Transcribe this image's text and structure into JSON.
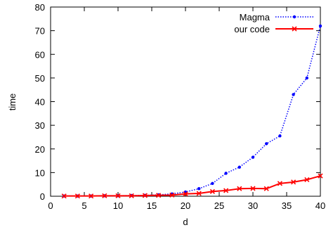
{
  "chart_data": {
    "type": "line",
    "title": "",
    "xlabel": "d",
    "ylabel": "time",
    "xlim": [
      0,
      40
    ],
    "ylim": [
      0,
      80
    ],
    "xticks": [
      "0",
      "5",
      "10",
      "15",
      "20",
      "25",
      "30",
      "35",
      "40"
    ],
    "yticks": [
      "0",
      "10",
      "20",
      "30",
      "40",
      "50",
      "60",
      "70",
      "80"
    ],
    "grid": false,
    "legend_position": "top-right",
    "series": [
      {
        "name": "Magma",
        "color": "#0000ff",
        "style": "dotted",
        "marker": "dot",
        "x": [
          2,
          4,
          6,
          8,
          10,
          12,
          14,
          16,
          18,
          20,
          22,
          24,
          26,
          28,
          30,
          32,
          34,
          36,
          38,
          40
        ],
        "y": [
          0.1,
          0.1,
          0.1,
          0.2,
          0.2,
          0.3,
          0.4,
          0.6,
          1.0,
          1.8,
          3.2,
          5.4,
          9.7,
          12.3,
          16.5,
          22.2,
          25.5,
          43.0,
          50.0,
          72.0
        ]
      },
      {
        "name": "our code",
        "color": "#ff0000",
        "style": "solid",
        "marker": "cross",
        "x": [
          2,
          4,
          6,
          8,
          10,
          12,
          14,
          16,
          18,
          20,
          22,
          24,
          26,
          28,
          30,
          32,
          34,
          36,
          38,
          40
        ],
        "y": [
          0.1,
          0.1,
          0.1,
          0.2,
          0.2,
          0.2,
          0.3,
          0.4,
          0.5,
          1.0,
          1.2,
          2.0,
          2.4,
          3.2,
          3.3,
          3.2,
          5.4,
          6.0,
          7.0,
          8.6
        ]
      }
    ]
  }
}
